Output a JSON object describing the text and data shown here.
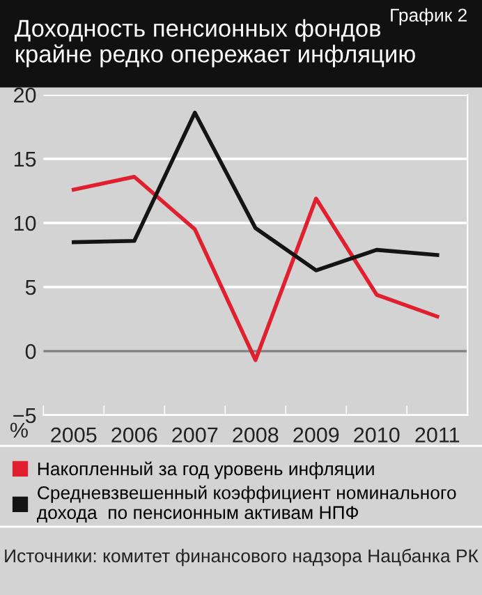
{
  "chart_data": {
    "type": "line",
    "title": "Доходность пенсионных фондов\nкрайне редко опережает инфляцию",
    "ylabel": "%",
    "categories": [
      "2005",
      "2006",
      "2007",
      "2008",
      "2009",
      "2010",
      "2011"
    ],
    "series": [
      {
        "name": "Накопленный за год уровень инфляции",
        "color": "#e0202e",
        "values": [
          12.6,
          13.6,
          9.5,
          -0.7,
          11.9,
          4.4,
          2.7
        ]
      },
      {
        "name": "Средневзвешенный коэффициент номинального\nдохода  по пенсионным активам НПФ",
        "color": "#141414",
        "values": [
          8.5,
          8.6,
          18.6,
          9.6,
          6.3,
          7.9,
          7.5
        ]
      }
    ],
    "ylim": [
      -5,
      20
    ],
    "yticks": [
      {
        "value": -5,
        "label": "−5"
      },
      0,
      5,
      10,
      15,
      20
    ],
    "grid": "y",
    "legend": "bottom",
    "marker": "none",
    "line_style": "solid",
    "ref_lines": [
      {
        "axis": "y",
        "value": 0,
        "color": "#808080"
      }
    ],
    "annotations": [
      "График 2",
      "Источники: комитет финансового надзора Нацбанка РК"
    ]
  }
}
